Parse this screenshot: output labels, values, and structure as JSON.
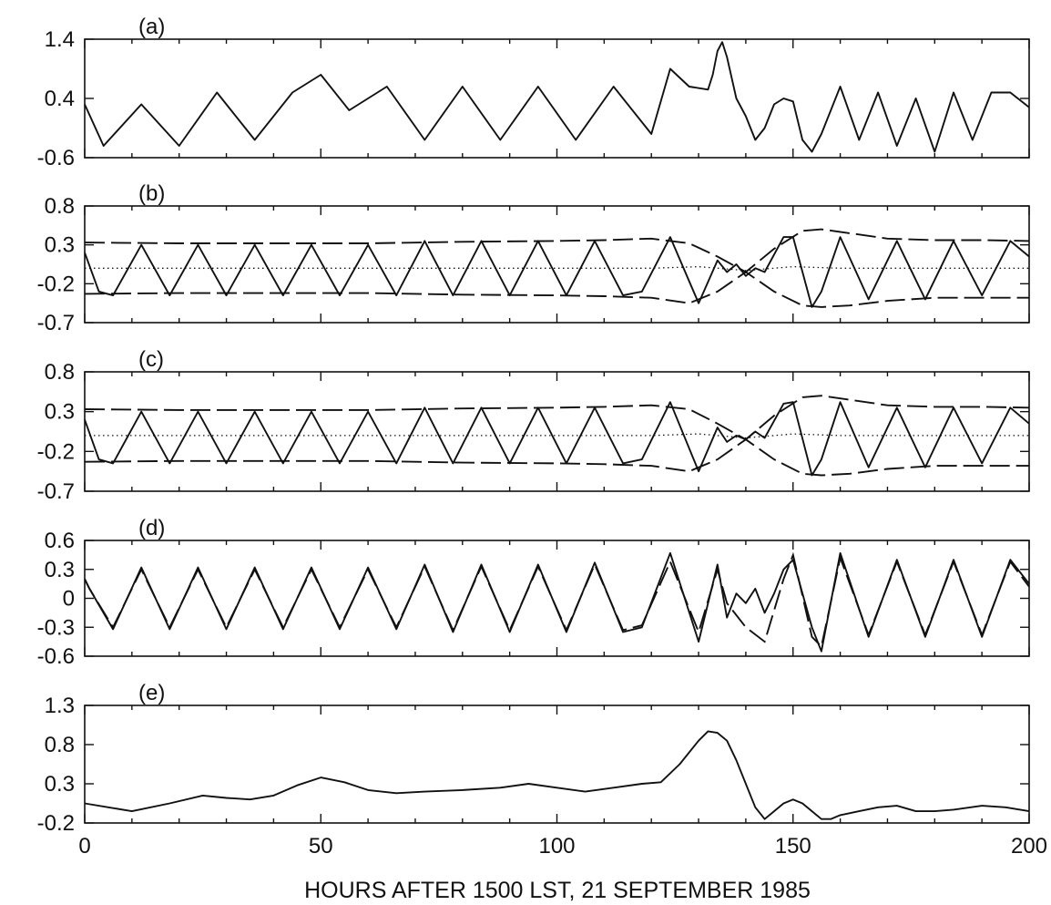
{
  "figure": {
    "xlabel": "HOURS AFTER 1500 LST, 21 SEPTEMBER 1985"
  },
  "chart_data": [
    {
      "type": "line",
      "panel": "(a)",
      "xlim": [
        0,
        200
      ],
      "ylim": [
        -0.6,
        1.4
      ],
      "yticks": [
        "1.4",
        "0.4",
        "-0.6"
      ],
      "xticks": [
        "0",
        "50",
        "100",
        "150",
        "200"
      ],
      "series": [
        {
          "style": "solid",
          "x": [
            0,
            4,
            12,
            20,
            28,
            36,
            44,
            50,
            56,
            64,
            72,
            80,
            88,
            96,
            104,
            112,
            120,
            124,
            128,
            132,
            133,
            134,
            135,
            136,
            138,
            140,
            142,
            144,
            146,
            148,
            150,
            152,
            154,
            156,
            160,
            164,
            168,
            172,
            176,
            180,
            184,
            188,
            192,
            196,
            200
          ],
          "y": [
            0.3,
            -0.4,
            0.3,
            -0.4,
            0.5,
            -0.3,
            0.5,
            0.8,
            0.2,
            0.6,
            -0.3,
            0.6,
            -0.3,
            0.6,
            -0.3,
            0.6,
            -0.2,
            0.9,
            0.6,
            0.55,
            0.8,
            1.2,
            1.35,
            1.1,
            0.4,
            0.1,
            -0.3,
            -0.1,
            0.3,
            0.4,
            0.35,
            -0.3,
            -0.5,
            -0.2,
            0.6,
            -0.3,
            0.5,
            -0.4,
            0.4,
            -0.5,
            0.5,
            -0.3,
            0.5,
            0.5,
            0.25
          ]
        }
      ]
    },
    {
      "type": "line",
      "panel": "(b)",
      "xlim": [
        0,
        200
      ],
      "ylim": [
        -0.7,
        0.8
      ],
      "yticks": [
        "0.8",
        "0.3",
        "-0.2",
        "-0.7"
      ],
      "xticks": [
        "0",
        "50",
        "100",
        "150",
        "200"
      ],
      "series": [
        {
          "style": "solid",
          "description": "oscillation",
          "x": [
            0,
            3,
            6,
            12,
            18,
            24,
            30,
            36,
            42,
            48,
            54,
            60,
            66,
            72,
            78,
            84,
            90,
            96,
            102,
            108,
            114,
            118,
            124,
            130,
            134,
            136,
            138,
            140,
            142,
            144,
            148,
            150,
            154,
            156,
            160,
            166,
            172,
            178,
            184,
            190,
            196,
            200
          ],
          "y": [
            0.2,
            -0.3,
            -0.35,
            0.3,
            -0.35,
            0.3,
            -0.35,
            0.3,
            -0.35,
            0.3,
            -0.35,
            0.3,
            -0.35,
            0.35,
            -0.35,
            0.35,
            -0.35,
            0.35,
            -0.35,
            0.35,
            -0.35,
            -0.3,
            0.4,
            -0.45,
            0.1,
            -0.05,
            0.05,
            -0.1,
            0.0,
            -0.05,
            0.4,
            0.4,
            -0.5,
            -0.3,
            0.4,
            -0.4,
            0.35,
            -0.4,
            0.35,
            -0.35,
            0.35,
            0.15
          ]
        },
        {
          "style": "dashed",
          "description": "upper envelope",
          "x": [
            0,
            20,
            40,
            60,
            80,
            100,
            110,
            120,
            128,
            134,
            140,
            146,
            152,
            156,
            162,
            170,
            180,
            190,
            200
          ],
          "y": [
            0.33,
            0.32,
            0.32,
            0.32,
            0.34,
            0.35,
            0.36,
            0.38,
            0.32,
            0.15,
            -0.05,
            0.25,
            0.48,
            0.5,
            0.45,
            0.38,
            0.36,
            0.36,
            0.35
          ]
        },
        {
          "style": "dashed",
          "description": "lower envelope",
          "x": [
            0,
            20,
            40,
            60,
            80,
            100,
            110,
            120,
            128,
            134,
            140,
            146,
            152,
            156,
            162,
            170,
            180,
            190,
            200
          ],
          "y": [
            -0.33,
            -0.32,
            -0.32,
            -0.32,
            -0.34,
            -0.35,
            -0.36,
            -0.38,
            -0.45,
            -0.3,
            -0.05,
            -0.3,
            -0.48,
            -0.5,
            -0.48,
            -0.42,
            -0.38,
            -0.38,
            -0.38
          ]
        },
        {
          "style": "dotted",
          "description": "mean",
          "x": [
            0,
            40,
            80,
            100,
            120,
            130,
            140,
            150,
            160,
            200
          ],
          "y": [
            0.0,
            0.0,
            0.0,
            0.0,
            0.0,
            0.02,
            -0.03,
            0.02,
            0.0,
            0.0
          ]
        }
      ]
    },
    {
      "type": "line",
      "panel": "(c)",
      "xlim": [
        0,
        200
      ],
      "ylim": [
        -0.7,
        0.8
      ],
      "yticks": [
        "0.8",
        "0.3",
        "-0.2",
        "-0.7"
      ],
      "xticks": [
        "0",
        "50",
        "100",
        "150",
        "200"
      ],
      "series": [
        {
          "style": "solid",
          "description": "oscillation",
          "x": [
            0,
            3,
            6,
            12,
            18,
            24,
            30,
            36,
            42,
            48,
            54,
            60,
            66,
            72,
            78,
            84,
            90,
            96,
            102,
            108,
            114,
            118,
            124,
            130,
            134,
            136,
            138,
            140,
            142,
            144,
            148,
            150,
            154,
            156,
            160,
            166,
            172,
            178,
            184,
            190,
            196,
            200
          ],
          "y": [
            0.2,
            -0.3,
            -0.35,
            0.3,
            -0.35,
            0.3,
            -0.35,
            0.3,
            -0.35,
            0.3,
            -0.35,
            0.3,
            -0.35,
            0.35,
            -0.35,
            0.35,
            -0.35,
            0.35,
            -0.35,
            0.35,
            -0.35,
            -0.3,
            0.42,
            -0.45,
            0.1,
            -0.08,
            0.0,
            -0.05,
            0.05,
            -0.03,
            0.4,
            0.42,
            -0.5,
            -0.3,
            0.42,
            -0.4,
            0.35,
            -0.4,
            0.35,
            -0.35,
            0.35,
            0.15
          ]
        },
        {
          "style": "dashed",
          "description": "upper envelope",
          "x": [
            0,
            20,
            40,
            60,
            80,
            100,
            110,
            120,
            128,
            134,
            140,
            146,
            152,
            156,
            162,
            170,
            180,
            190,
            200
          ],
          "y": [
            0.33,
            0.32,
            0.32,
            0.32,
            0.34,
            0.35,
            0.36,
            0.38,
            0.33,
            0.15,
            -0.05,
            0.25,
            0.48,
            0.5,
            0.45,
            0.38,
            0.36,
            0.36,
            0.35
          ]
        },
        {
          "style": "dashed",
          "description": "lower envelope",
          "x": [
            0,
            20,
            40,
            60,
            80,
            100,
            110,
            120,
            128,
            134,
            140,
            146,
            152,
            156,
            162,
            170,
            180,
            190,
            200
          ],
          "y": [
            -0.33,
            -0.32,
            -0.32,
            -0.32,
            -0.34,
            -0.35,
            -0.36,
            -0.38,
            -0.45,
            -0.3,
            -0.05,
            -0.3,
            -0.48,
            -0.5,
            -0.48,
            -0.42,
            -0.38,
            -0.38,
            -0.38
          ]
        },
        {
          "style": "dotted",
          "description": "mean",
          "x": [
            0,
            40,
            80,
            100,
            120,
            130,
            140,
            150,
            160,
            200
          ],
          "y": [
            0.0,
            0.0,
            0.0,
            0.0,
            0.0,
            0.02,
            -0.03,
            0.02,
            0.0,
            0.0
          ]
        }
      ]
    },
    {
      "type": "line",
      "panel": "(d)",
      "xlim": [
        0,
        200
      ],
      "ylim": [
        -0.6,
        0.6
      ],
      "yticks": [
        "0.6",
        "0.3",
        "0",
        "-0.3",
        "-0.6"
      ],
      "xticks": [
        "0",
        "50",
        "100",
        "150",
        "200"
      ],
      "series": [
        {
          "style": "solid",
          "x": [
            0,
            1,
            6,
            12,
            18,
            24,
            30,
            36,
            42,
            48,
            54,
            60,
            66,
            72,
            78,
            84,
            90,
            96,
            102,
            108,
            114,
            118,
            124,
            130,
            134,
            136,
            138,
            140,
            142,
            144,
            146,
            148,
            150,
            154,
            156,
            160,
            166,
            172,
            178,
            184,
            190,
            196,
            200
          ],
          "y": [
            0.2,
            0.1,
            -0.32,
            0.32,
            -0.32,
            0.32,
            -0.32,
            0.32,
            -0.32,
            0.32,
            -0.32,
            0.32,
            -0.32,
            0.35,
            -0.35,
            0.35,
            -0.35,
            0.35,
            -0.35,
            0.37,
            -0.35,
            -0.3,
            0.47,
            -0.45,
            0.35,
            -0.2,
            0.05,
            -0.05,
            0.1,
            -0.15,
            0.05,
            0.3,
            0.4,
            -0.3,
            -0.55,
            0.47,
            -0.4,
            0.4,
            -0.4,
            0.4,
            -0.4,
            0.4,
            0.15
          ]
        },
        {
          "style": "dashed",
          "x": [
            0,
            1,
            6,
            12,
            18,
            24,
            30,
            36,
            42,
            48,
            54,
            60,
            66,
            72,
            78,
            84,
            90,
            96,
            102,
            108,
            114,
            118,
            124,
            130,
            134,
            136,
            140,
            144,
            148,
            150,
            154,
            156,
            160,
            166,
            172,
            178,
            184,
            190,
            196,
            200
          ],
          "y": [
            0.2,
            0.1,
            -0.3,
            0.3,
            -0.3,
            0.3,
            -0.3,
            0.3,
            -0.3,
            0.3,
            -0.3,
            0.3,
            -0.3,
            0.33,
            -0.33,
            0.33,
            -0.33,
            0.33,
            -0.33,
            0.35,
            -0.33,
            -0.28,
            0.38,
            -0.35,
            0.3,
            -0.05,
            -0.3,
            -0.45,
            0.2,
            0.45,
            -0.4,
            -0.5,
            0.42,
            -0.38,
            0.38,
            -0.38,
            0.38,
            -0.38,
            0.38,
            0.12
          ]
        }
      ]
    },
    {
      "type": "line",
      "panel": "(e)",
      "xlim": [
        0,
        200
      ],
      "ylim": [
        -0.2,
        1.3
      ],
      "yticks": [
        "1.3",
        "0.8",
        "0.3",
        "-0.2"
      ],
      "xticks": [
        "0",
        "50",
        "100",
        "150",
        "200"
      ],
      "series": [
        {
          "style": "solid",
          "x": [
            0,
            5,
            10,
            18,
            25,
            30,
            35,
            40,
            45,
            50,
            55,
            60,
            66,
            72,
            80,
            88,
            94,
            100,
            106,
            112,
            118,
            122,
            126,
            130,
            132,
            134,
            136,
            138,
            140,
            142,
            144,
            146,
            148,
            150,
            152,
            154,
            156,
            158,
            160,
            164,
            168,
            172,
            176,
            180,
            184,
            190,
            195,
            200
          ],
          "y": [
            0.05,
            0.0,
            -0.05,
            0.05,
            0.15,
            0.12,
            0.1,
            0.15,
            0.28,
            0.38,
            0.32,
            0.22,
            0.18,
            0.2,
            0.22,
            0.25,
            0.3,
            0.25,
            0.2,
            0.25,
            0.3,
            0.32,
            0.55,
            0.85,
            0.97,
            0.95,
            0.85,
            0.6,
            0.3,
            0.0,
            -0.15,
            -0.05,
            0.05,
            0.1,
            0.05,
            -0.05,
            -0.15,
            -0.15,
            -0.1,
            -0.05,
            0.0,
            0.02,
            -0.05,
            -0.05,
            -0.03,
            0.02,
            0.0,
            -0.05
          ]
        }
      ]
    }
  ]
}
